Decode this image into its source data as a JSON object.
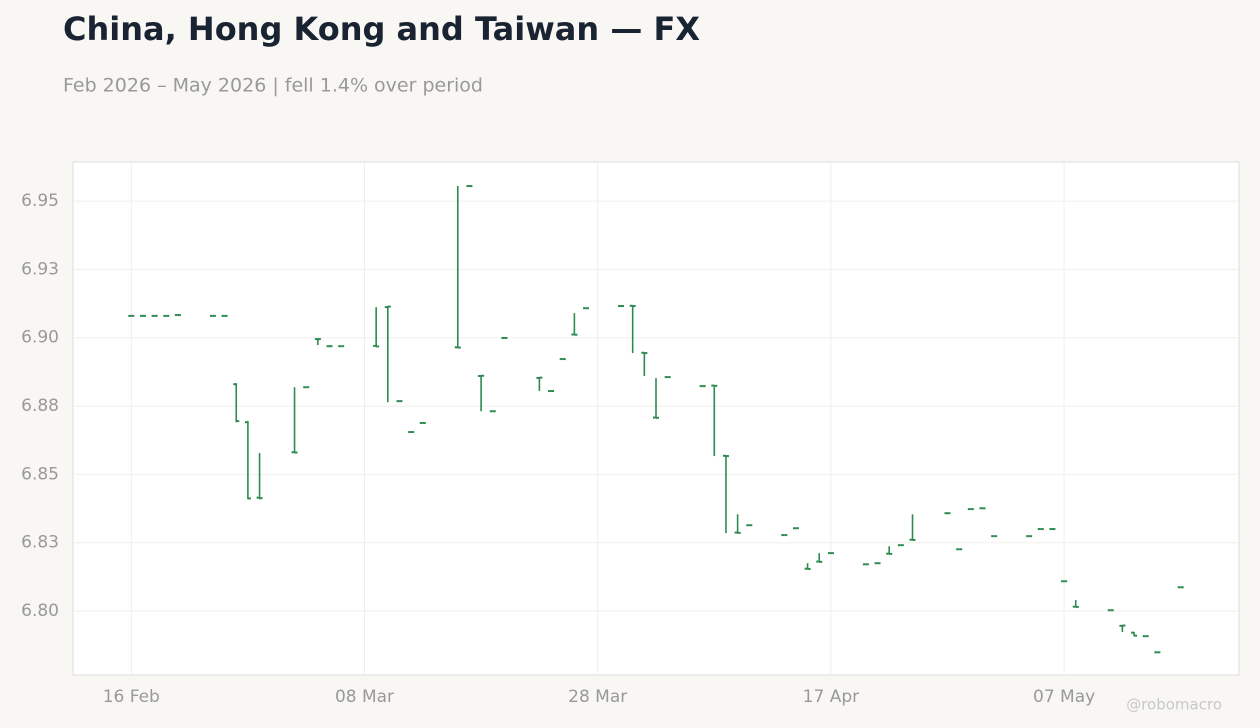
{
  "chart_data": {
    "type": "ohlc",
    "title": "China, Hong Kong and Taiwan — FX",
    "subtitle": "Feb 2026 – May 2026 | fell 1.4% over period",
    "watermark": "@robomacro",
    "color": "#2e8a50",
    "grid": true,
    "x": [
      "2026-02-16",
      "2026-02-17",
      "2026-02-18",
      "2026-02-19",
      "2026-02-20",
      "2026-02-23",
      "2026-02-24",
      "2026-02-25",
      "2026-02-26",
      "2026-02-27",
      "2026-03-02",
      "2026-03-03",
      "2026-03-04",
      "2026-03-05",
      "2026-03-06",
      "2026-03-09",
      "2026-03-10",
      "2026-03-11",
      "2026-03-12",
      "2026-03-13",
      "2026-03-16",
      "2026-03-17",
      "2026-03-18",
      "2026-03-19",
      "2026-03-20",
      "2026-03-23",
      "2026-03-24",
      "2026-03-25",
      "2026-03-26",
      "2026-03-27",
      "2026-03-30",
      "2026-03-31",
      "2026-04-01",
      "2026-04-02",
      "2026-04-03",
      "2026-04-06",
      "2026-04-07",
      "2026-04-08",
      "2026-04-09",
      "2026-04-10",
      "2026-04-13",
      "2026-04-14",
      "2026-04-15",
      "2026-04-16",
      "2026-04-17",
      "2026-04-20",
      "2026-04-21",
      "2026-04-22",
      "2026-04-23",
      "2026-04-24",
      "2026-04-27",
      "2026-04-28",
      "2026-04-29",
      "2026-04-30",
      "2026-05-01",
      "2026-05-04",
      "2026-05-05",
      "2026-05-06",
      "2026-05-07",
      "2026-05-08",
      "2026-05-11",
      "2026-05-12",
      "2026-05-13",
      "2026-05-14",
      "2026-05-15",
      "2026-05-17"
    ],
    "open": [
      6.908,
      6.908,
      6.908,
      6.908,
      6.9083,
      6.908,
      6.908,
      6.883,
      6.8691,
      6.8415,
      6.8581,
      6.8819,
      6.8995,
      6.8969,
      6.8969,
      6.897,
      6.9112,
      6.8768,
      6.8655,
      6.8688,
      6.8965,
      6.9555,
      6.886,
      6.8731,
      6.8999,
      6.8853,
      6.8805,
      6.8922,
      6.9012,
      6.9108,
      6.9116,
      6.9117,
      6.8945,
      6.8708,
      6.8856,
      6.8823,
      6.8825,
      6.8568,
      6.8287,
      6.8314,
      6.8278,
      6.8303,
      6.8155,
      6.8181,
      6.8212,
      6.8171,
      6.8175,
      6.821,
      6.8241,
      6.8261,
      6.8358,
      6.8226,
      6.8373,
      6.8376,
      6.8274,
      6.8274,
      6.83,
      6.83,
      6.8109,
      6.8016,
      6.8003,
      6.7946,
      6.7921,
      6.7908,
      6.7849,
      6.8087
    ],
    "high": [
      6.908,
      6.908,
      6.908,
      6.908,
      6.9083,
      6.908,
      6.908,
      6.8834,
      6.8695,
      6.8578,
      6.8819,
      6.8819,
      6.8999,
      6.8969,
      6.8969,
      6.9112,
      6.9116,
      6.8768,
      6.8655,
      6.8688,
      6.9555,
      6.9555,
      6.8863,
      6.8731,
      6.8999,
      6.8856,
      6.8805,
      6.8922,
      6.909,
      6.9108,
      6.9116,
      6.9119,
      6.8947,
      6.8852,
      6.8856,
      6.8823,
      6.8827,
      6.857,
      6.8354,
      6.8314,
      6.8278,
      6.8303,
      6.8175,
      6.8212,
      6.8212,
      6.8171,
      6.8175,
      6.8237,
      6.8241,
      6.8354,
      6.8358,
      6.8226,
      6.8373,
      6.8376,
      6.8274,
      6.8274,
      6.83,
      6.83,
      6.8109,
      6.804,
      6.8003,
      6.7948,
      6.7923,
      6.7908,
      6.7849,
      6.8087
    ],
    "low": [
      6.908,
      6.908,
      6.908,
      6.908,
      6.9083,
      6.908,
      6.908,
      6.8691,
      6.8409,
      6.8409,
      6.8578,
      6.8819,
      6.8973,
      6.8969,
      6.8969,
      6.8966,
      6.8764,
      6.8768,
      6.8655,
      6.8688,
      6.8962,
      6.9555,
      6.8731,
      6.8731,
      6.8999,
      6.8805,
      6.8805,
      6.8922,
      6.901,
      6.9108,
      6.9116,
      6.8944,
      6.886,
      6.8706,
      6.8856,
      6.8823,
      6.8567,
      6.8285,
      6.8285,
      6.8314,
      6.8278,
      6.8303,
      6.8153,
      6.8179,
      6.8212,
      6.8171,
      6.8175,
      6.8208,
      6.8241,
      6.8259,
      6.8358,
      6.8226,
      6.8373,
      6.8376,
      6.8274,
      6.8274,
      6.83,
      6.83,
      6.8109,
      6.8014,
      6.8003,
      6.7923,
      6.7908,
      6.7908,
      6.7849,
      6.8087
    ],
    "close": [
      6.908,
      6.908,
      6.908,
      6.908,
      6.9083,
      6.908,
      6.908,
      6.8695,
      6.8412,
      6.8413,
      6.858,
      6.8819,
      6.8995,
      6.8969,
      6.8969,
      6.8968,
      6.9114,
      6.8768,
      6.8655,
      6.8688,
      6.8964,
      6.9555,
      6.8861,
      6.8731,
      6.8999,
      6.8854,
      6.8805,
      6.8922,
      6.9011,
      6.9108,
      6.9116,
      6.9116,
      6.8944,
      6.8707,
      6.8856,
      6.8823,
      6.8824,
      6.8567,
      6.8286,
      6.8314,
      6.8278,
      6.8303,
      6.8154,
      6.818,
      6.8212,
      6.8171,
      6.8175,
      6.8209,
      6.8241,
      6.826,
      6.8358,
      6.8226,
      6.8373,
      6.8376,
      6.8274,
      6.8274,
      6.83,
      6.83,
      6.8109,
      6.8015,
      6.8003,
      6.7947,
      6.791,
      6.7908,
      6.7849,
      6.8087
    ],
    "xlim": [
      "2026-02-11",
      "2026-05-22"
    ],
    "xticks": [
      {
        "value": "2026-02-16",
        "label": "16 Feb"
      },
      {
        "value": "2026-03-08",
        "label": "08 Mar"
      },
      {
        "value": "2026-03-28",
        "label": "28 Mar"
      },
      {
        "value": "2026-04-17",
        "label": "17 Apr"
      },
      {
        "value": "2026-05-07",
        "label": "07 May"
      }
    ],
    "ylim": [
      6.7766,
      6.9643
    ],
    "yticks": [
      {
        "value": 6.8,
        "label": "6.80"
      },
      {
        "value": 6.825,
        "label": "6.83"
      },
      6.85,
      {
        "value": 6.875,
        "label": "6.88"
      },
      {
        "value": 6.9,
        "label": "6.90"
      },
      {
        "value": 6.925,
        "label": "6.93"
      },
      6.95
    ]
  }
}
